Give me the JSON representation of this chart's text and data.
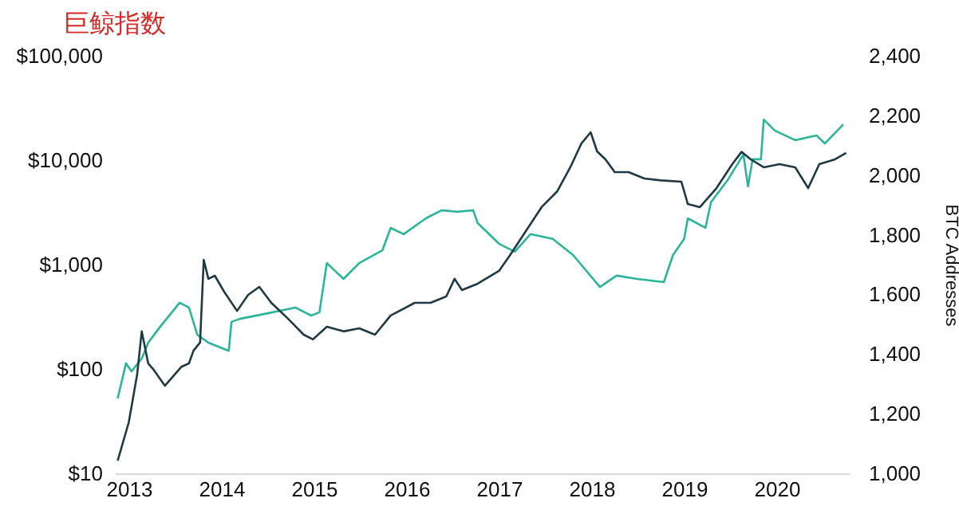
{
  "chart_data": {
    "type": "line",
    "title": "巨鲸指数",
    "y2label": "BTC Addresses",
    "log": "y",
    "grid": false,
    "xlim": [
      2012.85,
      2020.78
    ],
    "xticks": [
      2013,
      2014,
      2015,
      2016,
      2017,
      2018,
      2019,
      2020
    ],
    "ylim": [
      10,
      100000
    ],
    "yticks": [
      {
        "value": 10,
        "label": "$10"
      },
      {
        "value": 100,
        "label": "$100"
      },
      {
        "value": 1000,
        "label": "$1,000"
      },
      {
        "value": 10000,
        "label": "$10,000"
      },
      {
        "value": 100000,
        "label": "$100,000"
      }
    ],
    "y2lim": [
      1000,
      2400
    ],
    "y2ticks": [
      {
        "value": 1000,
        "label": "1,000"
      },
      {
        "value": 1200,
        "label": "1,200"
      },
      {
        "value": 1400,
        "label": "1,400"
      },
      {
        "value": 1600,
        "label": "1,600"
      },
      {
        "value": 1800,
        "label": "1,800"
      },
      {
        "value": 2000,
        "label": "2,000"
      },
      {
        "value": 2200,
        "label": "2,200"
      },
      {
        "value": 2400,
        "label": "2,400"
      }
    ],
    "series": [
      {
        "color": "#2bb59a",
        "axis": "y2",
        "x": [
          2012.88,
          2012.97,
          2013.03,
          2013.14,
          2013.21,
          2013.34,
          2013.55,
          2013.65,
          2013.74,
          2013.86,
          2014.08,
          2014.11,
          2014.2,
          2014.46,
          2014.8,
          2014.97,
          2015.06,
          2015.14,
          2015.32,
          2015.49,
          2015.74,
          2015.83,
          2015.97,
          2016.21,
          2016.38,
          2016.55,
          2016.72,
          2016.77,
          2017.0,
          2017.17,
          2017.34,
          2017.58,
          2017.8,
          2018.09,
          2018.27,
          2018.49,
          2018.78,
          2018.88,
          2019.0,
          2019.04,
          2019.23,
          2019.29,
          2019.47,
          2019.64,
          2019.69,
          2019.74,
          2019.83,
          2019.86,
          2019.98,
          2020.2,
          2020.43,
          2020.52,
          2020.72
        ],
        "values": [
          1251,
          1369,
          1342,
          1385,
          1438,
          1492,
          1572,
          1556,
          1465,
          1438,
          1411,
          1508,
          1518,
          1534,
          1556,
          1529,
          1540,
          1705,
          1652,
          1705,
          1748,
          1823,
          1802,
          1855,
          1882,
          1877,
          1882,
          1839,
          1770,
          1743,
          1802,
          1786,
          1732,
          1625,
          1663,
          1652,
          1641,
          1732,
          1786,
          1855,
          1823,
          1909,
          1983,
          2069,
          1962,
          2053,
          2053,
          2186,
          2149,
          2117,
          2133,
          2106,
          2170
        ]
      },
      {
        "color": "#1f3a44",
        "x": [
          2012.88,
          2013.0,
          2013.09,
          2013.14,
          2013.21,
          2013.27,
          2013.39,
          2013.57,
          2013.65,
          2013.7,
          2013.77,
          2013.81,
          2013.86,
          2013.93,
          2014.03,
          2014.17,
          2014.29,
          2014.41,
          2014.54,
          2014.72,
          2014.89,
          2014.99,
          2015.14,
          2015.32,
          2015.49,
          2015.66,
          2015.83,
          2016.09,
          2016.26,
          2016.43,
          2016.52,
          2016.6,
          2016.77,
          2017.0,
          2017.12,
          2017.29,
          2017.46,
          2017.63,
          2017.77,
          2017.89,
          2017.99,
          2018.06,
          2018.15,
          2018.25,
          2018.4,
          2018.57,
          2018.75,
          2018.97,
          2019.04,
          2019.17,
          2019.35,
          2019.52,
          2019.62,
          2019.72,
          2019.86,
          2020.03,
          2020.2,
          2020.34,
          2020.46,
          2020.63,
          2020.75
        ],
        "values": [
          13.2,
          30.8,
          88,
          229,
          113,
          98,
          69,
          105,
          113,
          150,
          179,
          1110,
          730,
          782,
          550,
          360,
          513,
          611,
          430,
          303,
          213,
          192,
          254,
          229,
          245,
          213,
          325,
          430,
          430,
          495,
          730,
          570,
          656,
          869,
          1235,
          2094,
          3548,
          5040,
          8540,
          14450,
          18500,
          12140,
          10180,
          7680,
          7680,
          6670,
          6400,
          6220,
          3800,
          3548,
          5400,
          9160,
          12000,
          10180,
          8540,
          9160,
          8540,
          5400,
          9160,
          10180,
          11720
        ]
      }
    ]
  }
}
